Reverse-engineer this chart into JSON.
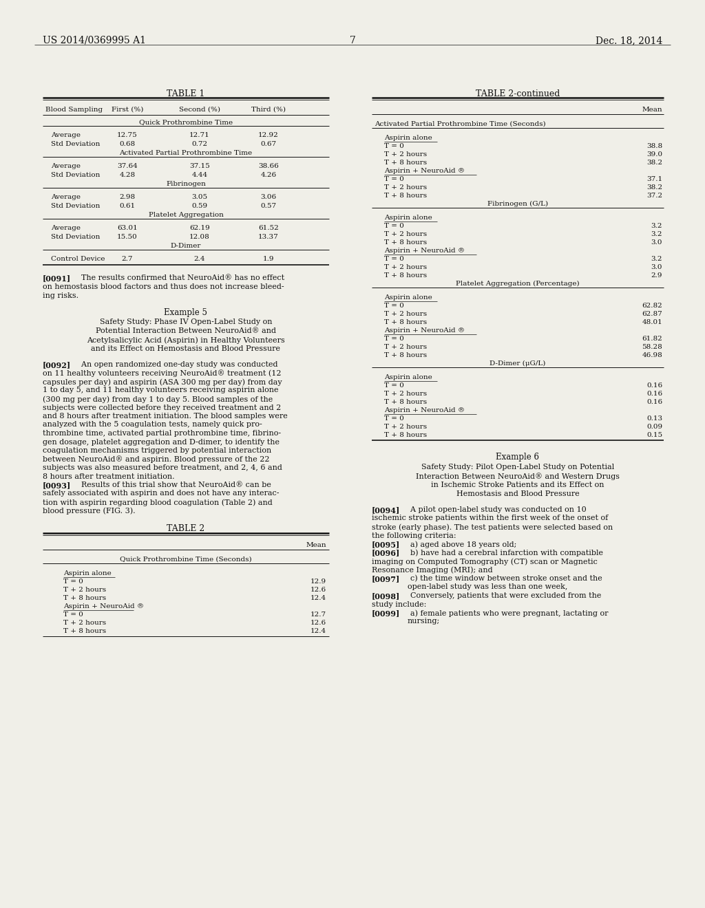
{
  "bg_color": "#f0efe8",
  "header_left": "US 2014/0369995 A1",
  "header_right": "Dec. 18, 2014",
  "page_number": "7",
  "table1_title": "TABLE 1",
  "table1_headers": [
    "Blood Sampling",
    "First (%)",
    "Second (%)",
    "Third (%)"
  ],
  "table1_section1": "Quick Prothrombine Time",
  "table1_rows1": [
    [
      "Average",
      "12.75",
      "12.71",
      "12.92"
    ],
    [
      "Std Deviation",
      "0.68",
      "0.72",
      "0.67"
    ]
  ],
  "table1_section2": "Activated Partial Prothrombine Time",
  "table1_rows2": [
    [
      "Average",
      "37.64",
      "37.15",
      "38.66"
    ],
    [
      "Std Deviation",
      "4.28",
      "4.44",
      "4.26"
    ]
  ],
  "table1_section3": "Fibrinogen",
  "table1_rows3": [
    [
      "Average",
      "2.98",
      "3.05",
      "3.06"
    ],
    [
      "Std Deviation",
      "0.61",
      "0.59",
      "0.57"
    ]
  ],
  "table1_section4": "Platelet Aggregation",
  "table1_rows4": [
    [
      "Average",
      "63.01",
      "62.19",
      "61.52"
    ],
    [
      "Std Deviation",
      "15.50",
      "12.08",
      "13.37"
    ]
  ],
  "table1_section5": "D-Dimer",
  "table1_rows5": [
    [
      "Control Device",
      "2.7",
      "2.4",
      "1.9"
    ]
  ],
  "table2_title": "TABLE 2",
  "table2_header": "Mean",
  "table2_section_qpt": "Quick Prothrombine Time (Seconds)",
  "table2_aspirin_alone_rows": [
    [
      "T = 0",
      "12.9"
    ],
    [
      "T + 2 hours",
      "12.6"
    ],
    [
      "T + 8 hours",
      "12.4"
    ]
  ],
  "table2_neuroaid_rows": [
    [
      "T = 0",
      "12.7"
    ],
    [
      "T + 2 hours",
      "12.6"
    ],
    [
      "T + 8 hours",
      "12.4"
    ]
  ],
  "table2cont_title": "TABLE 2-continued",
  "table2cont_header": "Mean",
  "table2cont_section_appt": "Activated Partial Prothrombine Time (Seconds)",
  "table2cont_aspirin_appt": [
    [
      "T = 0",
      "38.8"
    ],
    [
      "T + 2 hours",
      "39.0"
    ],
    [
      "T + 8 hours",
      "38.2"
    ]
  ],
  "table2cont_neuroaid_appt": [
    [
      "T = 0",
      "37.1"
    ],
    [
      "T + 2 hours",
      "38.2"
    ],
    [
      "T + 8 hours",
      "37.2"
    ]
  ],
  "table2cont_section_fibrinogen": "Fibrinogen (G/L)",
  "table2cont_aspirin_fibrinogen": [
    [
      "T = 0",
      "3.2"
    ],
    [
      "T + 2 hours",
      "3.2"
    ],
    [
      "T + 8 hours",
      "3.0"
    ]
  ],
  "table2cont_neuroaid_fibrinogen": [
    [
      "T = 0",
      "3.2"
    ],
    [
      "T + 2 hours",
      "3.0"
    ],
    [
      "T + 8 hours",
      "2.9"
    ]
  ],
  "table2cont_section_platelet": "Platelet Aggregation (Percentage)",
  "table2cont_aspirin_platelet": [
    [
      "T = 0",
      "62.82"
    ],
    [
      "T + 2 hours",
      "62.87"
    ],
    [
      "T + 8 hours",
      "48.01"
    ]
  ],
  "table2cont_neuroaid_platelet": [
    [
      "T = 0",
      "61.82"
    ],
    [
      "T + 2 hours",
      "58.28"
    ],
    [
      "T + 8 hours",
      "46.98"
    ]
  ],
  "table2cont_section_ddimer": "D-Dimer (μG/L)",
  "table2cont_aspirin_ddimer": [
    [
      "T = 0",
      "0.16"
    ],
    [
      "T + 2 hours",
      "0.16"
    ],
    [
      "T + 8 hours",
      "0.16"
    ]
  ],
  "table2cont_neuroaid_ddimer": [
    [
      "T = 0",
      "0.13"
    ],
    [
      "T + 2 hours",
      "0.09"
    ],
    [
      "T + 8 hours",
      "0.15"
    ]
  ],
  "example5_title": "Example 5",
  "example5_subtitle_lines": [
    "Safety Study: Phase IV Open-Label Study on",
    "Potential Interaction Between NeuroAid® and",
    "Acetylsalicylic Acid (Aspirin) in Healthy Volunteers",
    "and its Effect on Hemostasis and Blood Pressure"
  ],
  "para0091_lines": [
    "The results confirmed that NeuroAid® has no effect",
    "on hemostasis blood factors and thus does not increase bleed-",
    "ing risks."
  ],
  "para0092_lines": [
    "An open randomized one-day study was conducted",
    "on 11 healthy volunteers receiving NeuroAid® treatment (12",
    "capsules per day) and aspirin (ASA 300 mg per day) from day",
    "1 to day 5, and 11 healthy volunteers receiving aspirin alone",
    "(300 mg per day) from day 1 to day 5. Blood samples of the",
    "subjects were collected before they received treatment and 2",
    "and 8 hours after treatment initiation. The blood samples were",
    "analyzed with the 5 coagulation tests, namely quick pro-",
    "thrombine time, activated partial prothrombine time, fibrino-",
    "gen dosage, platelet aggregation and D-dimer, to identify the",
    "coagulation mechanisms triggered by potential interaction",
    "between NeuroAid® and aspirin. Blood pressure of the 22",
    "subjects was also measured before treatment, and 2, 4, 6 and",
    "8 hours after treatment initiation."
  ],
  "para0093_lines": [
    "Results of this trial show that NeuroAid® can be",
    "safely associated with aspirin and does not have any interac-",
    "tion with aspirin regarding blood coagulation (Table 2) and",
    "blood pressure (FIG. 3)."
  ],
  "example6_title": "Example 6",
  "example6_subtitle_lines": [
    "Safety Study: Pilot Open-Label Study on Potential",
    "Interaction Between NeuroAid® and Western Drugs",
    "in Ischemic Stroke Patients and its Effect on",
    "Hemostasis and Blood Pressure"
  ],
  "para0094_lines": [
    "A pilot open-label study was conducted on 10",
    "ischemic stroke patients within the first week of the onset of",
    "stroke (early phase). The test patients were selected based on",
    "the following criteria:"
  ],
  "para0095_line": "a) aged above 18 years old;",
  "para0096_lines": [
    "b) have had a cerebral infarction with compatible",
    "imaging on Computed Tomography (CT) scan or Magnetic",
    "Resonance Imaging (MRI); and"
  ],
  "para0097_lines": [
    "c) the time window between stroke onset and the",
    "open-label study was less than one week,"
  ],
  "para0098_lines": [
    "Conversely, patients that were excluded from the",
    "study include:"
  ],
  "para0099_lines": [
    "a) female patients who were pregnant, lactating or",
    "nursing;"
  ]
}
